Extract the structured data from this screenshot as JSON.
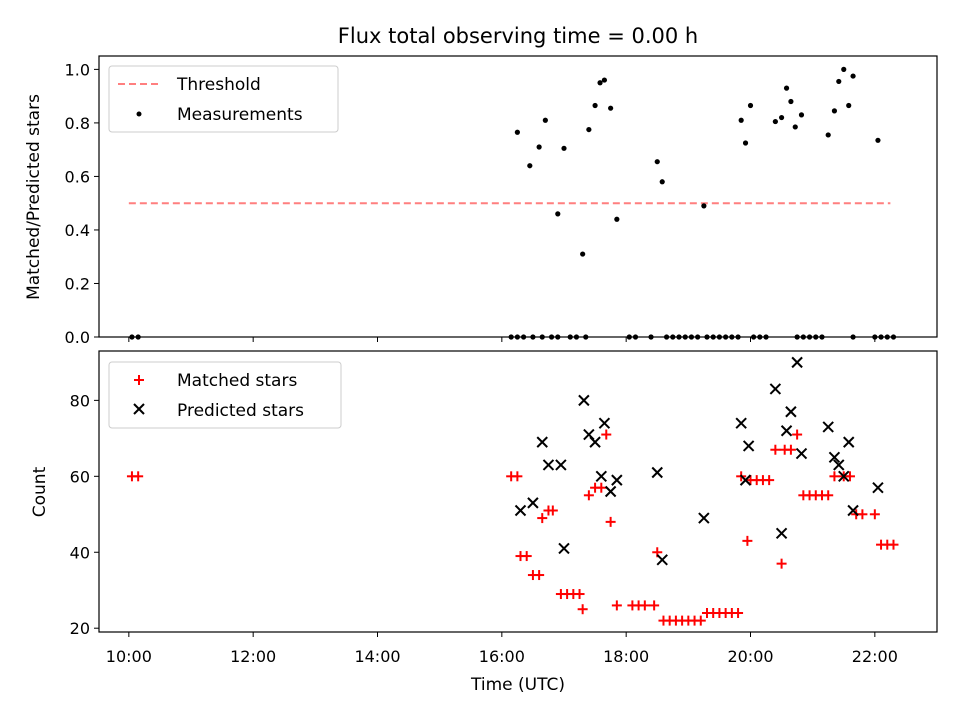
{
  "figure_title": "Flux total observing time = 0.00 h",
  "colors": {
    "threshold": "#ff7f7f",
    "measurement": "#000000",
    "matched": "#ff0000",
    "predicted": "#000000"
  },
  "chart_data": [
    {
      "type": "scatter",
      "title": "Flux total observing time = 0.00 h",
      "xlabel": "",
      "ylabel": "Matched/Predicted stars",
      "x_unit": "hours UTC",
      "xlim": [
        9.52,
        23.0
      ],
      "ylim": [
        0,
        1.05
      ],
      "yticks": [
        0.0,
        0.2,
        0.4,
        0.6,
        0.8,
        1.0
      ],
      "ytick_labels": [
        "0.0",
        "0.2",
        "0.4",
        "0.6",
        "0.8",
        "1.0"
      ],
      "legend_position": "top-left",
      "series": [
        {
          "name": "Threshold",
          "style": "dashed-line",
          "color": "#ff7f7f",
          "x": [
            10.0,
            22.25
          ],
          "y": [
            0.5,
            0.5
          ]
        },
        {
          "name": "Measurements",
          "style": "dot",
          "color": "#000000",
          "points": [
            [
              10.05,
              0
            ],
            [
              10.15,
              0
            ],
            [
              16.25,
              0.765
            ],
            [
              16.45,
              0.64
            ],
            [
              16.6,
              0.71
            ],
            [
              16.7,
              0.81
            ],
            [
              16.9,
              0.46
            ],
            [
              17.0,
              0.705
            ],
            [
              17.3,
              0.31
            ],
            [
              17.4,
              0.775
            ],
            [
              17.5,
              0.865
            ],
            [
              17.58,
              0.95
            ],
            [
              17.65,
              0.96
            ],
            [
              17.75,
              0.855
            ],
            [
              17.85,
              0.44
            ],
            [
              18.5,
              0.655
            ],
            [
              18.58,
              0.58
            ],
            [
              19.25,
              0.49
            ],
            [
              19.85,
              0.81
            ],
            [
              19.92,
              0.725
            ],
            [
              20.0,
              0.865
            ],
            [
              20.4,
              0.805
            ],
            [
              20.5,
              0.82
            ],
            [
              20.58,
              0.93
            ],
            [
              20.65,
              0.88
            ],
            [
              20.72,
              0.785
            ],
            [
              20.82,
              0.83
            ],
            [
              21.25,
              0.755
            ],
            [
              21.35,
              0.845
            ],
            [
              21.42,
              0.955
            ],
            [
              21.5,
              1.0
            ],
            [
              21.58,
              0.865
            ],
            [
              21.65,
              0.975
            ],
            [
              22.05,
              0.735
            ],
            [
              16.15,
              0
            ],
            [
              16.25,
              0
            ],
            [
              16.35,
              0
            ],
            [
              16.5,
              0
            ],
            [
              16.65,
              0
            ],
            [
              16.8,
              0
            ],
            [
              16.9,
              0
            ],
            [
              17.1,
              0
            ],
            [
              17.2,
              0
            ],
            [
              17.35,
              0
            ],
            [
              18.05,
              0
            ],
            [
              18.15,
              0
            ],
            [
              18.4,
              0
            ],
            [
              18.65,
              0
            ],
            [
              18.75,
              0
            ],
            [
              18.85,
              0
            ],
            [
              18.95,
              0
            ],
            [
              19.05,
              0
            ],
            [
              19.15,
              0
            ],
            [
              19.3,
              0
            ],
            [
              19.4,
              0
            ],
            [
              19.5,
              0
            ],
            [
              19.6,
              0
            ],
            [
              19.7,
              0
            ],
            [
              19.8,
              0
            ],
            [
              20.05,
              0
            ],
            [
              20.15,
              0
            ],
            [
              20.25,
              0
            ],
            [
              20.75,
              0
            ],
            [
              20.85,
              0
            ],
            [
              20.95,
              0
            ],
            [
              21.05,
              0
            ],
            [
              21.15,
              0
            ],
            [
              21.65,
              0
            ],
            [
              22.0,
              0
            ],
            [
              22.1,
              0
            ],
            [
              22.2,
              0
            ],
            [
              22.3,
              0
            ]
          ]
        }
      ]
    },
    {
      "type": "scatter",
      "title": "",
      "xlabel": "Time (UTC)",
      "ylabel": "Count",
      "x_unit": "hours UTC",
      "xlim": [
        9.52,
        23.0
      ],
      "ylim": [
        19,
        93
      ],
      "xticks": [
        10,
        12,
        14,
        16,
        18,
        20,
        22
      ],
      "xtick_labels": [
        "10:00",
        "12:00",
        "14:00",
        "16:00",
        "18:00",
        "20:00",
        "22:00"
      ],
      "yticks": [
        20,
        40,
        60,
        80
      ],
      "ytick_labels": [
        "20",
        "40",
        "60",
        "80"
      ],
      "legend_position": "top-left",
      "series": [
        {
          "name": "Matched stars",
          "marker": "plus",
          "color": "#ff0000",
          "points": [
            [
              10.05,
              60
            ],
            [
              10.15,
              60
            ],
            [
              16.15,
              60
            ],
            [
              16.25,
              60
            ],
            [
              16.3,
              39
            ],
            [
              16.4,
              39
            ],
            [
              16.5,
              34
            ],
            [
              16.6,
              34
            ],
            [
              16.65,
              49
            ],
            [
              16.75,
              51
            ],
            [
              16.82,
              51
            ],
            [
              16.95,
              29
            ],
            [
              17.05,
              29
            ],
            [
              17.15,
              29
            ],
            [
              17.25,
              29
            ],
            [
              17.3,
              25
            ],
            [
              17.4,
              55
            ],
            [
              17.5,
              57
            ],
            [
              17.6,
              57
            ],
            [
              17.68,
              71
            ],
            [
              17.75,
              48
            ],
            [
              17.85,
              26
            ],
            [
              18.1,
              26
            ],
            [
              18.2,
              26
            ],
            [
              18.3,
              26
            ],
            [
              18.45,
              26
            ],
            [
              18.5,
              40
            ],
            [
              18.6,
              22
            ],
            [
              18.7,
              22
            ],
            [
              18.8,
              22
            ],
            [
              18.9,
              22
            ],
            [
              19.0,
              22
            ],
            [
              19.1,
              22
            ],
            [
              19.2,
              22
            ],
            [
              19.3,
              24
            ],
            [
              19.4,
              24
            ],
            [
              19.5,
              24
            ],
            [
              19.6,
              24
            ],
            [
              19.7,
              24
            ],
            [
              19.8,
              24
            ],
            [
              19.85,
              60
            ],
            [
              19.95,
              43
            ],
            [
              20.0,
              59
            ],
            [
              20.1,
              59
            ],
            [
              20.2,
              59
            ],
            [
              20.3,
              59
            ],
            [
              20.4,
              67
            ],
            [
              20.5,
              37
            ],
            [
              20.55,
              67
            ],
            [
              20.65,
              67
            ],
            [
              20.75,
              71
            ],
            [
              20.85,
              55
            ],
            [
              20.95,
              55
            ],
            [
              21.05,
              55
            ],
            [
              21.15,
              55
            ],
            [
              21.25,
              55
            ],
            [
              21.35,
              60
            ],
            [
              21.5,
              60
            ],
            [
              21.6,
              60
            ],
            [
              21.7,
              50
            ],
            [
              21.8,
              50
            ],
            [
              22.0,
              50
            ],
            [
              22.1,
              42
            ],
            [
              22.2,
              42
            ],
            [
              22.3,
              42
            ]
          ]
        },
        {
          "name": "Predicted stars",
          "marker": "x",
          "color": "#000000",
          "points": [
            [
              16.3,
              51
            ],
            [
              16.5,
              53
            ],
            [
              16.65,
              69
            ],
            [
              16.75,
              63
            ],
            [
              16.95,
              63
            ],
            [
              17.0,
              41
            ],
            [
              17.32,
              80
            ],
            [
              17.4,
              71
            ],
            [
              17.5,
              69
            ],
            [
              17.6,
              60
            ],
            [
              17.65,
              74
            ],
            [
              17.75,
              56
            ],
            [
              17.85,
              59
            ],
            [
              18.5,
              61
            ],
            [
              18.58,
              38
            ],
            [
              19.25,
              49
            ],
            [
              19.85,
              74
            ],
            [
              19.92,
              59
            ],
            [
              19.97,
              68
            ],
            [
              20.4,
              83
            ],
            [
              20.5,
              45
            ],
            [
              20.58,
              72
            ],
            [
              20.65,
              77
            ],
            [
              20.75,
              90
            ],
            [
              20.82,
              66
            ],
            [
              21.25,
              73
            ],
            [
              21.35,
              65
            ],
            [
              21.42,
              63
            ],
            [
              21.5,
              60
            ],
            [
              21.58,
              69
            ],
            [
              21.65,
              51
            ],
            [
              22.05,
              57
            ]
          ]
        }
      ]
    }
  ]
}
